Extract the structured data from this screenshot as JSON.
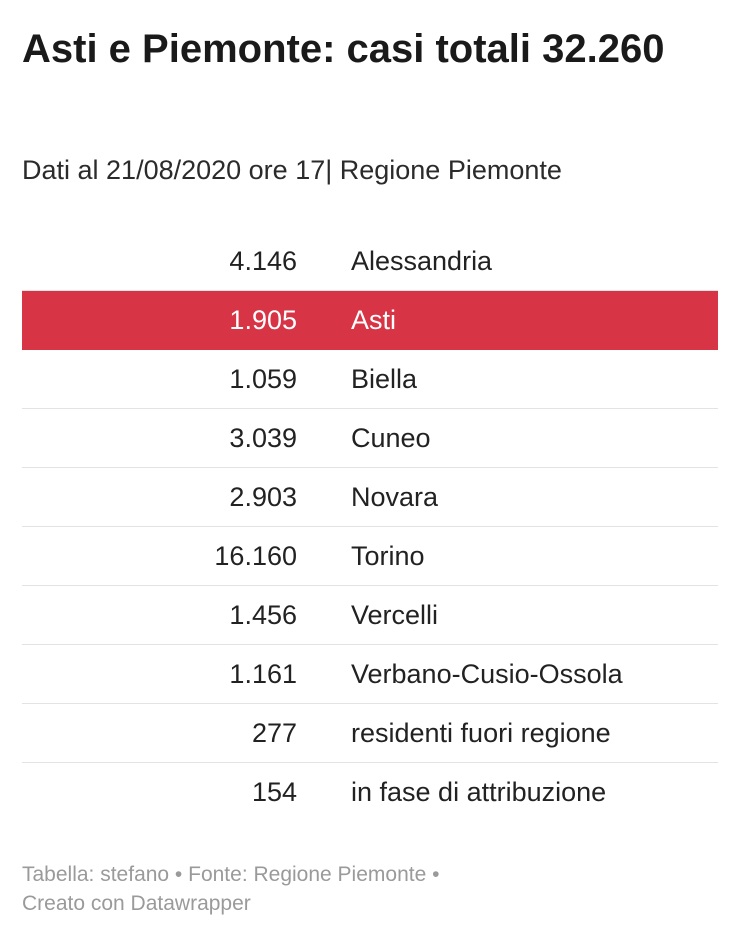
{
  "title": "Asti e Piemonte: casi totali 32.260",
  "subtitle": "Dati al 21/08/2020 ore 17| Regione Piemonte",
  "footer": {
    "line1": "Tabella: stefano • Fonte: Regione Piemonte •",
    "line2": "Creato con Datawrapper"
  },
  "colors": {
    "highlight": "#d73445",
    "text": "#222222",
    "footer": "#9a9a9a",
    "divider": "#e3e3e3"
  },
  "chart_data": {
    "type": "table",
    "title": "Asti e Piemonte: casi totali 32.260",
    "subtitle": "Dati al 21/08/2020 ore 17| Regione Piemonte",
    "rows": [
      {
        "value": "4.146",
        "name": "Alessandria",
        "highlighted": false
      },
      {
        "value": "1.905",
        "name": "Asti",
        "highlighted": true
      },
      {
        "value": "1.059",
        "name": "Biella",
        "highlighted": false
      },
      {
        "value": "3.039",
        "name": "Cuneo",
        "highlighted": false
      },
      {
        "value": "2.903",
        "name": "Novara",
        "highlighted": false
      },
      {
        "value": "16.160",
        "name": "Torino",
        "highlighted": false
      },
      {
        "value": "1.456",
        "name": "Vercelli",
        "highlighted": false
      },
      {
        "value": "1.161",
        "name": "Verbano-Cusio-Ossola",
        "highlighted": false
      },
      {
        "value": "277",
        "name": "residenti fuori regione",
        "highlighted": false
      },
      {
        "value": "154",
        "name": "in fase di attribuzione",
        "highlighted": false
      }
    ]
  }
}
